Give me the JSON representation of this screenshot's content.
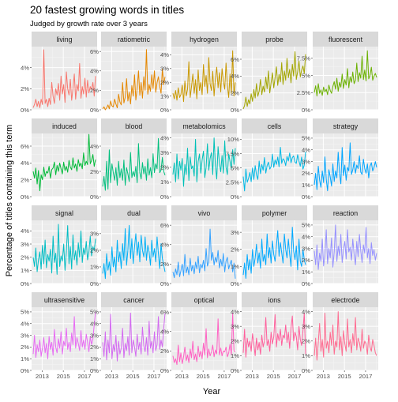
{
  "title": "20 fastest growing words in titles",
  "subtitle": "Judged by growth rate over 3 years",
  "xlabel": "Year",
  "ylabel": "Percentage of titles containing this term",
  "x_tick_labels": [
    "2013",
    "2015",
    "2017"
  ],
  "chart_data": {
    "type": "line",
    "layout": "facet-grid",
    "rows": 4,
    "cols": 5,
    "x_domain": [
      2012.0,
      2018.2
    ],
    "x_ticks": [
      2013,
      2015,
      2017
    ],
    "grid": true,
    "facets": [
      {
        "name": "living",
        "color": "#F8766D",
        "ylim": [
          0,
          6
        ],
        "yticks": [
          0,
          2,
          4
        ],
        "values": [
          0.2,
          0.5,
          1.0,
          0.3,
          0.8,
          0.2,
          1.0,
          0.5,
          5.7,
          0.6,
          1.0,
          0.3,
          1.1,
          0.5,
          2.6,
          1.3,
          0.6,
          2.0,
          1.4,
          2.5,
          0.9,
          3.2,
          1.5,
          2.4,
          0.7,
          3.6,
          2.0,
          1.4,
          2.9,
          0.9,
          2.0,
          3.4,
          1.0,
          2.4,
          1.8,
          4.4,
          1.1,
          2.2,
          1.5,
          3.0,
          1.2,
          2.8,
          1.6,
          2.2,
          1.9,
          2.6,
          1.3,
          3.2
        ]
      },
      {
        "name": "ratiometric",
        "color": "#E58700",
        "ylim": [
          0,
          6.5
        ],
        "yticks": [
          0,
          2,
          4,
          6
        ],
        "values": [
          0.1,
          0.3,
          0.0,
          0.2,
          0.5,
          0.1,
          0.9,
          0.4,
          0.3,
          1.1,
          0.6,
          0.2,
          1.6,
          0.8,
          0.5,
          2.8,
          0.7,
          1.3,
          3.2,
          0.9,
          1.8,
          0.6,
          2.5,
          1.4,
          3.6,
          1.0,
          2.2,
          4.0,
          1.5,
          2.8,
          1.2,
          3.4,
          2.0,
          6.2,
          1.6,
          2.6,
          1.9,
          3.6,
          2.2,
          4.0,
          1.8,
          2.8,
          3.4,
          2.4,
          1.7,
          4.2,
          2.6,
          3.4
        ]
      },
      {
        "name": "hydrogen",
        "color": "#C99800",
        "ylim": [
          0,
          4.6
        ],
        "yticks": [
          0,
          1,
          2,
          3,
          4
        ],
        "values": [
          1.2,
          0.8,
          1.4,
          0.7,
          1.6,
          0.9,
          1.1,
          1.8,
          0.6,
          2.1,
          1.0,
          1.5,
          3.5,
          0.9,
          1.7,
          2.6,
          1.2,
          2.2,
          0.8,
          2.9,
          1.4,
          2.0,
          1.1,
          3.3,
          1.7,
          2.5,
          1.2,
          3.8,
          1.9,
          1.4,
          2.8,
          1.0,
          2.3,
          3.1,
          1.6,
          2.7,
          1.3,
          3.0,
          2.1,
          1.5,
          3.4,
          1.8,
          0.9,
          2.6,
          1.2,
          4.3,
          1.0,
          2.0
        ]
      },
      {
        "name": "probe",
        "color": "#A3A500",
        "ylim": [
          0,
          7.5
        ],
        "yticks": [
          0,
          2,
          4,
          6
        ],
        "values": [
          0.1,
          0.5,
          1.5,
          0.4,
          1.2,
          0.7,
          1.9,
          1.0,
          2.4,
          1.4,
          3.1,
          1.6,
          2.2,
          3.6,
          1.8,
          2.8,
          2.1,
          3.9,
          2.5,
          4.6,
          2.0,
          3.2,
          4.4,
          2.6,
          3.8,
          5.1,
          2.9,
          4.2,
          3.3,
          5.6,
          3.0,
          4.6,
          3.5,
          6.1,
          3.8,
          4.8,
          3.2,
          5.4,
          4.0,
          6.9,
          3.6,
          4.5,
          5.8,
          3.9,
          4.7,
          5.2,
          4.3,
          6.6
        ]
      },
      {
        "name": "fluorescent",
        "color": "#6BB100",
        "ylim": [
          0,
          9.2
        ],
        "yticks": [
          0,
          2.5,
          5,
          7.5
        ],
        "values": [
          2.5,
          3.5,
          2.0,
          3.8,
          2.4,
          2.9,
          2.1,
          3.3,
          2.6,
          3.0,
          2.2,
          3.6,
          2.8,
          2.4,
          3.4,
          4.1,
          3.0,
          4.6,
          2.7,
          4.0,
          3.3,
          5.2,
          3.1,
          4.4,
          3.6,
          6.0,
          3.2,
          4.8,
          4.0,
          5.5,
          3.8,
          4.3,
          6.8,
          4.1,
          5.4,
          4.6,
          7.8,
          4.4,
          5.8,
          4.2,
          8.6,
          4.5,
          5.0,
          6.2,
          4.3,
          4.9,
          5.3,
          4.7
        ]
      },
      {
        "name": "induced",
        "color": "#00BA38",
        "ylim": [
          0,
          7.5
        ],
        "yticks": [
          0,
          2,
          4,
          6
        ],
        "values": [
          3.0,
          2.2,
          3.4,
          1.5,
          3.1,
          0.7,
          2.6,
          2.0,
          3.5,
          2.4,
          3.0,
          2.8,
          3.6,
          2.2,
          3.2,
          3.4,
          4.1,
          2.6,
          3.7,
          3.0,
          4.0,
          3.3,
          2.7,
          4.1,
          3.1,
          3.6,
          2.9,
          4.3,
          3.5,
          3.2,
          4.6,
          3.4,
          3.9,
          3.0,
          4.4,
          3.6,
          4.0,
          3.3,
          5.2,
          3.7,
          4.2,
          3.8,
          7.4,
          3.9,
          4.3,
          5.0,
          3.6,
          4.4
        ]
      },
      {
        "name": "blood",
        "color": "#00BF7D",
        "ylim": [
          0,
          5.0
        ],
        "yticks": [
          0,
          2,
          4
        ],
        "values": [
          0.8,
          1.6,
          0.5,
          2.8,
          0.6,
          3.7,
          1.1,
          2.6,
          1.9,
          1.3,
          2.3,
          0.9,
          2.8,
          1.5,
          2.2,
          1.3,
          2.9,
          0.9,
          2.3,
          1.8,
          1.2,
          3.5,
          1.5,
          2.0,
          1.6,
          2.4,
          1.1,
          4.2,
          1.9,
          1.4,
          2.7,
          1.8,
          2.4,
          1.3,
          3.0,
          1.7,
          2.3,
          1.5,
          3.4,
          1.9,
          2.6,
          2.2,
          4.6,
          1.9,
          2.1,
          3.1,
          2.0,
          1.7
        ]
      },
      {
        "name": "metabolomics",
        "color": "#00C0B8",
        "ylim": [
          0,
          4.3
        ],
        "yticks": [
          0,
          1,
          2,
          3,
          4
        ],
        "values": [
          1.5,
          2.3,
          1.0,
          2.9,
          1.2,
          2.4,
          1.8,
          2.6,
          0.7,
          2.2,
          1.5,
          3.3,
          1.1,
          2.7,
          1.9,
          2.1,
          1.4,
          3.9,
          1.0,
          2.4,
          2.9,
          1.6,
          2.5,
          3.1,
          1.3,
          2.0,
          3.6,
          1.8,
          2.6,
          3.0,
          1.5,
          4.0,
          2.1,
          1.2,
          3.4,
          2.3,
          1.7,
          2.8,
          1.6,
          3.8,
          2.0,
          1.5,
          2.9,
          2.4,
          1.9,
          3.2,
          2.2,
          3.3
        ]
      },
      {
        "name": "cells",
        "color": "#00B8E5",
        "ylim": [
          0,
          11.0
        ],
        "yticks": [
          0,
          2.5,
          5,
          7.5,
          10
        ],
        "values": [
          3.5,
          1.0,
          4.8,
          2.5,
          3.2,
          4.2,
          2.6,
          5.0,
          3.0,
          5.4,
          3.8,
          3.0,
          6.2,
          4.0,
          5.6,
          4.6,
          6.8,
          4.1,
          5.4,
          6.0,
          4.8,
          5.2,
          7.4,
          5.1,
          6.4,
          5.6,
          6.9,
          5.2,
          8.6,
          5.8,
          6.6,
          6.3,
          5.4,
          7.0,
          6.2,
          7.6,
          5.9,
          6.8,
          7.1,
          6.0,
          5.8,
          7.3,
          6.2,
          5.3,
          6.9,
          4.8,
          5.5,
          7.8
        ]
      },
      {
        "name": "strategy",
        "color": "#00A5FF",
        "ylim": [
          0,
          5.4
        ],
        "yticks": [
          0,
          1,
          2,
          3,
          4,
          5
        ],
        "values": [
          1.0,
          2.0,
          0.6,
          2.6,
          1.4,
          0.8,
          2.2,
          1.2,
          3.4,
          1.5,
          0.5,
          2.3,
          1.7,
          0.9,
          2.8,
          1.3,
          2.2,
          1.6,
          3.8,
          2.0,
          1.1,
          4.2,
          1.8,
          2.7,
          1.4,
          2.5,
          2.2,
          4.6,
          1.9,
          2.3,
          3.0,
          2.0,
          2.7,
          2.4,
          3.5,
          2.1,
          1.9,
          3.2,
          2.4,
          2.0,
          2.8,
          1.6,
          2.6,
          2.9,
          2.2,
          2.5,
          3.0,
          2.5
        ]
      },
      {
        "name": "signal",
        "color": "#00BDC4",
        "ylim": [
          0,
          4.8
        ],
        "yticks": [
          0,
          1,
          2,
          3,
          4
        ],
        "values": [
          2.0,
          1.3,
          2.7,
          0.9,
          1.8,
          2.4,
          1.1,
          2.9,
          1.5,
          3.3,
          1.2,
          2.2,
          1.7,
          2.6,
          0.8,
          3.6,
          1.6,
          2.3,
          0.7,
          4.5,
          1.3,
          2.1,
          1.7,
          3.0,
          1.0,
          2.4,
          4.4,
          1.5,
          2.8,
          1.1,
          3.7,
          1.8,
          2.5,
          1.4,
          3.1,
          2.0,
          4.0,
          1.6,
          2.7,
          2.2,
          3.2,
          1.8,
          2.4,
          3.6,
          2.1,
          2.8,
          2.5,
          3.4
        ]
      },
      {
        "name": "dual",
        "color": "#00B0F6",
        "ylim": [
          0,
          3.8
        ],
        "yticks": [
          0,
          1,
          2,
          3
        ],
        "values": [
          0.6,
          1.2,
          0.3,
          1.8,
          0.8,
          1.3,
          0.5,
          2.2,
          1.0,
          1.6,
          0.7,
          2.6,
          1.3,
          1.9,
          0.9,
          2.4,
          1.4,
          3.3,
          1.1,
          2.0,
          3.5,
          1.5,
          2.7,
          1.2,
          2.2,
          3.0,
          1.7,
          2.5,
          1.3,
          2.9,
          2.0,
          1.6,
          2.8,
          1.4,
          2.3,
          1.9,
          1.1,
          2.6,
          1.6,
          2.1,
          1.3,
          2.8,
          1.8,
          0.9,
          2.4,
          1.5,
          1.1,
          0.7
        ]
      },
      {
        "name": "vivo",
        "color": "#35A2FF",
        "ylim": [
          0,
          6.5
        ],
        "yticks": [
          0,
          2,
          4,
          6
        ],
        "values": [
          1.2,
          0.6,
          1.5,
          0.9,
          2.2,
          0.7,
          1.3,
          2.0,
          0.8,
          3.0,
          1.1,
          1.7,
          0.9,
          2.6,
          1.3,
          1.9,
          1.0,
          2.2,
          1.5,
          2.8,
          1.1,
          2.0,
          1.6,
          2.4,
          1.3,
          3.6,
          1.8,
          2.2,
          5.6,
          2.4,
          3.2,
          1.9,
          2.7,
          2.2,
          3.4,
          1.6,
          2.5,
          1.8,
          3.1,
          1.2,
          2.3,
          2.7,
          1.5,
          2.0,
          2.4,
          1.2,
          2.1,
          0.5
        ]
      },
      {
        "name": "polymer",
        "color": "#00A9FF",
        "ylim": [
          0,
          3.7
        ],
        "yticks": [
          0,
          1,
          2,
          3
        ],
        "values": [
          0.5,
          1.2,
          0.3,
          1.7,
          0.8,
          1.4,
          0.6,
          2.0,
          1.0,
          1.5,
          2.3,
          1.2,
          1.8,
          0.9,
          2.6,
          1.3,
          1.7,
          1.1,
          2.9,
          1.5,
          2.1,
          1.2,
          2.5,
          1.7,
          1.3,
          2.2,
          3.1,
          1.6,
          2.4,
          1.8,
          1.2,
          2.9,
          2.0,
          1.5,
          2.6,
          1.7,
          1.0,
          3.3,
          1.9,
          1.4,
          2.2,
          0.8,
          2.6,
          1.3,
          1.0,
          2.0,
          1.4,
          1.1
        ]
      },
      {
        "name": "reaction",
        "color": "#9590FF",
        "ylim": [
          0,
          5.4
        ],
        "yticks": [
          0,
          1,
          2,
          3,
          4,
          5
        ],
        "values": [
          2.8,
          1.6,
          3.3,
          1.2,
          2.6,
          1.9,
          3.8,
          1.5,
          2.4,
          4.6,
          1.7,
          3.0,
          2.2,
          3.9,
          1.4,
          2.7,
          5.0,
          1.9,
          3.2,
          2.4,
          4.2,
          1.8,
          2.9,
          3.6,
          2.1,
          4.6,
          2.7,
          3.1,
          2.0,
          3.8,
          2.5,
          1.6,
          3.6,
          2.3,
          4.2,
          2.8,
          1.8,
          3.3,
          2.6,
          4.8,
          2.2,
          3.0,
          1.7,
          3.5,
          2.4,
          2.9,
          2.0,
          2.6
        ]
      },
      {
        "name": "ultrasensitive",
        "color": "#E76BF3",
        "ylim": [
          0,
          5.4
        ],
        "yticks": [
          0,
          1,
          2,
          3,
          4,
          5
        ],
        "values": [
          1.4,
          3.0,
          1.1,
          2.2,
          1.6,
          2.6,
          1.2,
          1.9,
          2.8,
          1.5,
          2.3,
          1.0,
          2.9,
          1.8,
          2.4,
          1.3,
          3.5,
          2.0,
          1.5,
          2.7,
          1.9,
          3.3,
          1.4,
          2.5,
          2.1,
          3.6,
          1.8,
          2.4,
          1.6,
          3.2,
          2.2,
          4.6,
          1.9,
          2.8,
          2.3,
          1.7,
          3.4,
          2.0,
          2.6,
          1.8,
          3.1,
          2.4,
          1.6,
          2.9,
          2.2,
          2.7,
          3.9,
          5.0
        ]
      },
      {
        "name": "cancer",
        "color": "#D36AF1",
        "ylim": [
          0,
          5.4
        ],
        "yticks": [
          0,
          1,
          2,
          3,
          4,
          5
        ],
        "values": [
          2.4,
          1.2,
          3.3,
          0.9,
          2.6,
          1.5,
          4.8,
          1.0,
          2.2,
          1.6,
          3.0,
          0.8,
          2.5,
          1.4,
          1.9,
          3.6,
          1.1,
          2.3,
          1.7,
          2.9,
          1.3,
          4.9,
          1.5,
          2.6,
          2.0,
          1.2,
          3.1,
          1.8,
          2.4,
          1.4,
          3.7,
          2.1,
          1.6,
          2.8,
          1.3,
          4.2,
          1.9,
          2.5,
          1.5,
          3.3,
          1.7,
          2.2,
          4.6,
          1.8,
          2.6,
          2.0,
          3.6,
          4.9
        ]
      },
      {
        "name": "optical",
        "color": "#FF61C3",
        "ylim": [
          0,
          6.5
        ],
        "yticks": [
          0,
          2,
          4,
          6
        ],
        "values": [
          1.5,
          0.8,
          1.2,
          0.6,
          2.6,
          0.9,
          1.8,
          0.7,
          1.4,
          2.4,
          1.0,
          1.6,
          0.8,
          2.2,
          1.3,
          3.0,
          1.1,
          1.7,
          0.9,
          2.5,
          1.4,
          2.0,
          1.2,
          2.8,
          1.6,
          4.3,
          1.3,
          2.2,
          1.5,
          1.9,
          2.6,
          1.4,
          2.1,
          1.7,
          5.3,
          1.6,
          2.3,
          1.5,
          2.0,
          1.9,
          2.4,
          1.4,
          1.8,
          2.7,
          1.6,
          5.9,
          2.0,
          1.9
        ]
      },
      {
        "name": "ions",
        "color": "#FF5F9C",
        "ylim": [
          0,
          4.3
        ],
        "yticks": [
          0,
          1,
          2,
          3,
          4
        ],
        "values": [
          1.2,
          2.8,
          0.9,
          2.2,
          1.6,
          2.0,
          1.3,
          2.5,
          1.8,
          1.0,
          2.2,
          1.4,
          1.9,
          1.1,
          2.4,
          1.6,
          2.0,
          3.6,
          1.7,
          2.1,
          1.3,
          2.6,
          1.8,
          2.3,
          3.8,
          1.6,
          2.5,
          2.0,
          2.8,
          1.7,
          2.4,
          2.2,
          3.1,
          1.9,
          2.6,
          1.5,
          2.9,
          3.7,
          2.0,
          2.6,
          2.3,
          1.4,
          3.0,
          2.1,
          1.7,
          2.7,
          3.9,
          1.1
        ]
      },
      {
        "name": "electrode",
        "color": "#FF6C91",
        "ylim": [
          0,
          4.3
        ],
        "yticks": [
          0,
          1,
          2,
          3,
          4
        ],
        "values": [
          1.0,
          2.2,
          0.7,
          1.9,
          3.2,
          1.3,
          2.1,
          0.9,
          3.9,
          1.5,
          2.0,
          1.2,
          2.6,
          1.7,
          3.1,
          1.1,
          2.0,
          1.6,
          4.0,
          1.4,
          2.3,
          1.0,
          2.7,
          1.8,
          1.3,
          3.5,
          1.6,
          2.1,
          1.2,
          2.5,
          1.7,
          3.6,
          1.4,
          2.2,
          1.9,
          1.3,
          2.8,
          1.5,
          2.0,
          1.8,
          1.1,
          2.4,
          1.6,
          1.3,
          2.1,
          1.7,
          1.2,
          1.0
        ]
      }
    ]
  }
}
